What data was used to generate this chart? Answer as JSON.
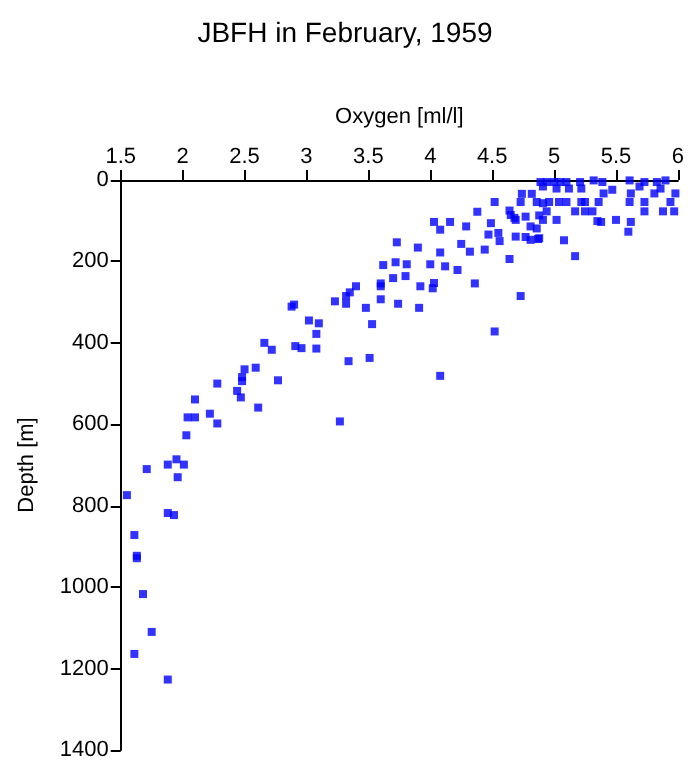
{
  "chart_data": {
    "type": "scatter",
    "title": "JBFH in February, 1959",
    "xlabel": "Oxygen [ml/l]",
    "ylabel": "Depth [m]",
    "xlim": [
      1.5,
      6
    ],
    "xticks": [
      1.5,
      2,
      2.5,
      3,
      3.5,
      4,
      4.5,
      5,
      5.5,
      6
    ],
    "ylim": [
      1400,
      0
    ],
    "yticks": [
      0,
      200,
      400,
      600,
      800,
      1000,
      1200,
      1400
    ],
    "grid": false,
    "marker": "square",
    "series": [
      {
        "color": "#0000ff",
        "x": [
          1.61,
          1.75,
          1.88,
          2.66,
          2.72,
          2.91,
          2.96,
          3.08,
          3.34,
          3.51,
          4.08,
          2.5,
          2.59,
          2.28,
          2.44,
          2.48,
          2.48,
          2.47,
          2.77,
          2.61,
          2.1,
          2.22,
          2.04,
          2.1,
          2.28,
          3.27,
          2.03,
          1.71,
          1.88,
          1.95,
          2.01,
          1.96,
          1.55,
          1.88,
          1.93,
          1.61,
          1.63,
          1.63,
          1.68,
          4.03,
          4.08,
          4.16,
          4.29,
          4.38,
          4.49,
          4.52,
          4.47,
          4.55,
          4.64,
          4.69,
          4.73,
          4.77,
          4.87,
          4.81,
          4.25,
          4.32,
          4.44,
          4.56,
          4.64,
          5.08,
          5.17,
          3.73,
          3.9,
          4.08,
          4.12,
          4.0,
          4.22,
          4.36,
          4.73,
          4.52,
          3.62,
          3.72,
          3.81,
          3.8,
          3.7,
          3.6,
          3.6,
          3.92,
          4.03,
          4.02,
          3.4,
          3.35,
          3.32,
          3.32,
          3.23,
          3.48,
          3.6,
          3.74,
          3.91,
          2.9,
          2.88,
          3.02,
          3.1,
          3.08,
          3.53,
          4.74,
          4.82,
          4.89,
          4.94,
          5.0,
          5.05,
          5.1,
          4.91,
          5.02,
          5.12,
          4.86,
          4.91,
          4.96,
          5.04,
          4.94,
          4.88,
          4.91,
          4.86,
          4.88,
          4.81,
          4.69,
          4.77,
          4.65,
          4.68,
          5.1,
          5.02,
          5.21,
          5.22,
          5.32,
          5.39,
          5.4,
          5.25,
          5.36,
          5.25,
          5.31,
          5.47,
          5.17,
          5.38,
          5.5,
          5.61,
          5.73,
          5.83,
          5.9,
          5.62,
          5.69,
          5.86,
          5.61,
          5.73,
          5.94,
          5.88,
          5.97,
          5.62,
          5.6,
          5.81,
          5.98,
          5.73,
          5.22,
          5.35
        ],
        "values": [
          1164,
          1110,
          1227,
          400,
          417,
          408,
          413,
          414,
          445,
          437,
          481,
          465,
          461,
          500,
          518,
          484,
          494,
          534,
          492,
          559,
          539,
          574,
          583,
          583,
          598,
          593,
          627,
          710,
          699,
          686,
          699,
          730,
          774,
          818,
          823,
          872,
          923,
          929,
          1017,
          103,
          122,
          103,
          114,
          78,
          106,
          54,
          134,
          130,
          75,
          98,
          54,
          140,
          145,
          114,
          157,
          176,
          171,
          150,
          194,
          148,
          187,
          153,
          166,
          178,
          212,
          207,
          221,
          254,
          285,
          372,
          209,
          202,
          207,
          236,
          241,
          254,
          261,
          261,
          253,
          266,
          261,
          276,
          285,
          304,
          298,
          314,
          293,
          304,
          314,
          306,
          311,
          345,
          352,
          378,
          354,
          34,
          34,
          5,
          5,
          5,
          5,
          5,
          16,
          21,
          21,
          54,
          57,
          54,
          54,
          77,
          87,
          98,
          119,
          143,
          147,
          139,
          90,
          86,
          93,
          54,
          98,
          5,
          21,
          1,
          5,
          33,
          54,
          54,
          77,
          77,
          24,
          77,
          103,
          98,
          1,
          5,
          5,
          1,
          33,
          16,
          21,
          54,
          54,
          54,
          77,
          77,
          103,
          127,
          33,
          33,
          77,
          54,
          101
        ]
      }
    ]
  }
}
